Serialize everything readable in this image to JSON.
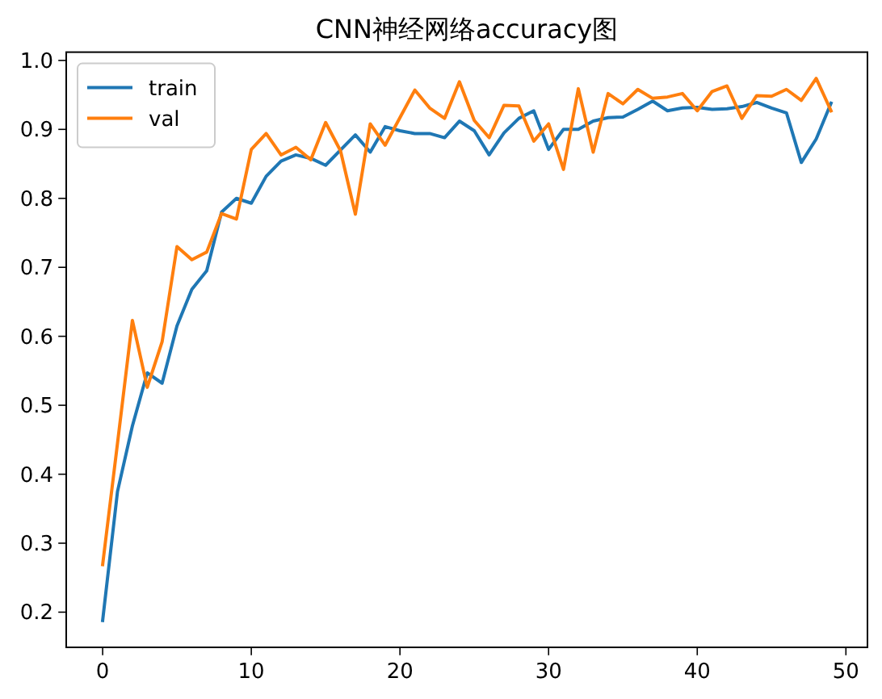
{
  "chart_data": {
    "type": "line",
    "title": "CNN神经网络accuracy图",
    "x": [
      0,
      1,
      2,
      3,
      4,
      5,
      6,
      7,
      8,
      9,
      10,
      11,
      12,
      13,
      14,
      15,
      16,
      17,
      18,
      19,
      20,
      21,
      22,
      23,
      24,
      25,
      26,
      27,
      28,
      29,
      30,
      31,
      32,
      33,
      34,
      35,
      36,
      37,
      38,
      39,
      40,
      41,
      42,
      43,
      44,
      45,
      46,
      47,
      48,
      49
    ],
    "series": [
      {
        "name": "train",
        "color": "#1f77b4",
        "values": [
          0.188,
          0.375,
          0.47,
          0.547,
          0.532,
          0.615,
          0.668,
          0.695,
          0.78,
          0.8,
          0.793,
          0.832,
          0.854,
          0.863,
          0.858,
          0.848,
          0.87,
          0.892,
          0.867,
          0.904,
          0.898,
          0.894,
          0.894,
          0.888,
          0.912,
          0.898,
          0.863,
          0.895,
          0.916,
          0.927,
          0.871,
          0.9,
          0.9,
          0.912,
          0.917,
          0.918,
          0.929,
          0.941,
          0.927,
          0.931,
          0.932,
          0.929,
          0.93,
          0.933,
          0.939,
          0.931,
          0.924,
          0.852,
          0.886,
          0.938
        ]
      },
      {
        "name": "val",
        "color": "#ff7f0e",
        "values": [
          0.269,
          0.445,
          0.623,
          0.526,
          0.592,
          0.73,
          0.711,
          0.722,
          0.778,
          0.77,
          0.871,
          0.894,
          0.863,
          0.874,
          0.856,
          0.91,
          0.869,
          0.777,
          0.908,
          0.877,
          0.917,
          0.957,
          0.931,
          0.916,
          0.969,
          0.913,
          0.888,
          0.935,
          0.934,
          0.883,
          0.908,
          0.842,
          0.959,
          0.867,
          0.952,
          0.937,
          0.958,
          0.945,
          0.947,
          0.952,
          0.927,
          0.955,
          0.963,
          0.916,
          0.949,
          0.948,
          0.958,
          0.942,
          0.974,
          0.927
        ]
      }
    ],
    "xlim": [
      -2.45,
      51.45
    ],
    "ylim": [
      0.149,
      1.012
    ],
    "xticks": [
      0,
      10,
      20,
      30,
      40,
      50
    ],
    "yticks": [
      {
        "value": 0.2,
        "label": "0.2"
      },
      {
        "value": 0.3,
        "label": "0.3"
      },
      {
        "value": 0.4,
        "label": "0.4"
      },
      {
        "value": 0.5,
        "label": "0.5"
      },
      {
        "value": 0.6,
        "label": "0.6"
      },
      {
        "value": 0.7,
        "label": "0.7"
      },
      {
        "value": 0.8,
        "label": "0.8"
      },
      {
        "value": 0.9,
        "label": "0.9"
      },
      {
        "value": 1.0,
        "label": "1.0"
      }
    ],
    "legend": "top left",
    "grid": false,
    "line_style": "solid",
    "marker": "none"
  }
}
